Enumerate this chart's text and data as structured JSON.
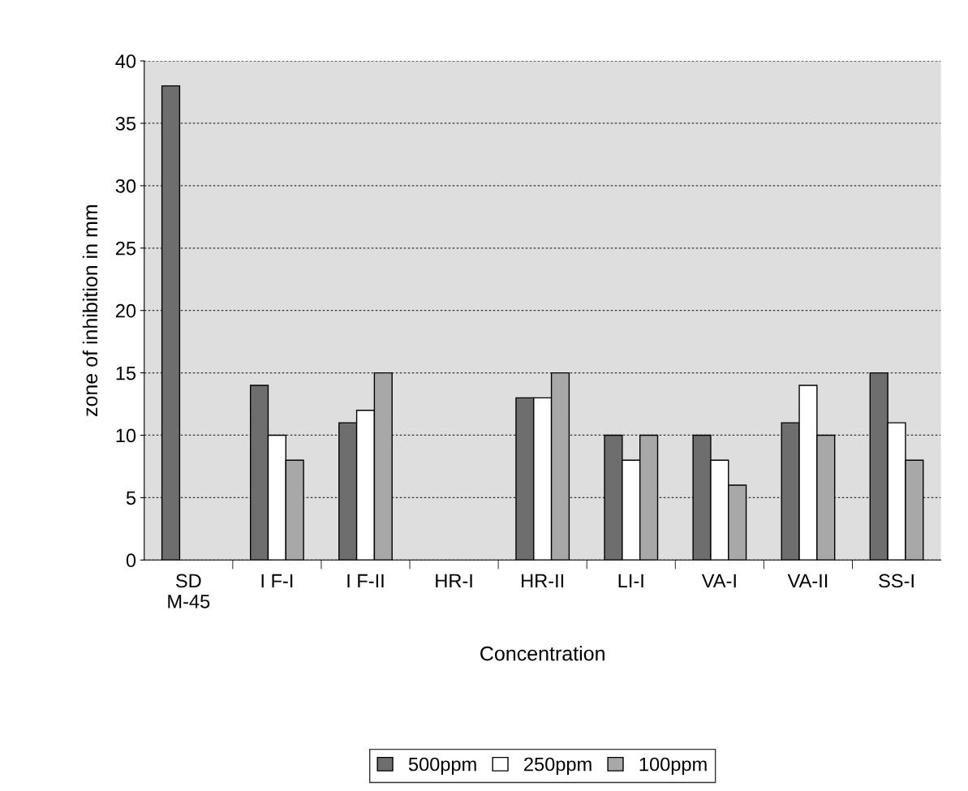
{
  "chart_data": {
    "type": "bar",
    "xlabel": "Concentration",
    "ylabel": "zone of inhibition in mm",
    "categories": [
      "SD\nM-45",
      "I F-I",
      "I F-II",
      "HR-I",
      "HR-II",
      "LI-I",
      "VA-I",
      "VA-II",
      "SS-I"
    ],
    "series": [
      {
        "name": "500ppm",
        "color": "#6e6e6e",
        "values": [
          38,
          14,
          11,
          null,
          13,
          10,
          10,
          11,
          15
        ]
      },
      {
        "name": "250ppm",
        "color": "#ffffff",
        "values": [
          null,
          10,
          12,
          null,
          13,
          8,
          8,
          14,
          11
        ]
      },
      {
        "name": "100ppm",
        "color": "#a8a8a8",
        "values": [
          null,
          8,
          15,
          null,
          15,
          10,
          6,
          10,
          8
        ]
      }
    ],
    "ylim": [
      0,
      40
    ],
    "yticks": [
      0,
      5,
      10,
      15,
      20,
      25,
      30,
      35,
      40
    ],
    "grid": "y",
    "legend": "bottom"
  }
}
